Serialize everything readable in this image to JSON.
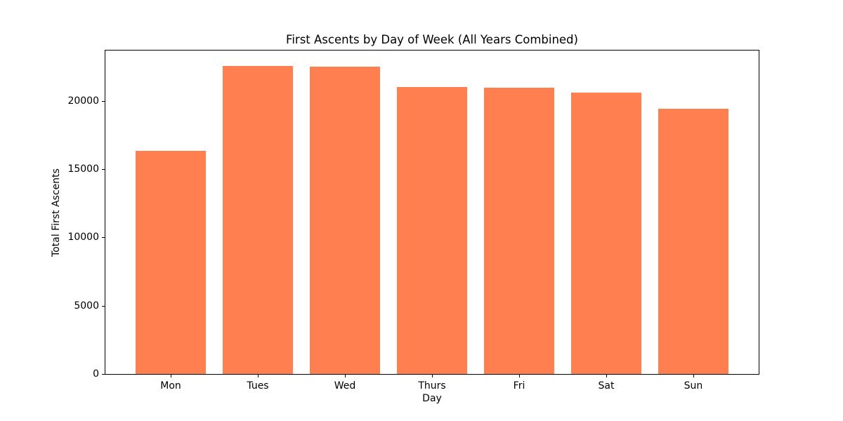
{
  "figure": {
    "background_color": "#ffffff",
    "text_color": "#000000"
  },
  "chart_data": {
    "type": "bar",
    "title": "First Ascents by Day of Week (All Years Combined)",
    "xlabel": "Day",
    "ylabel": "Total First Ascents",
    "categories": [
      "Mon",
      "Tues",
      "Wed",
      "Thurs",
      "Fri",
      "Sat",
      "Sun"
    ],
    "values": [
      16350,
      22570,
      22500,
      21050,
      21000,
      20640,
      19440
    ],
    "bar_color": "#ff7f50",
    "bar_width": 0.8,
    "xlim": [
      -0.75,
      6.75
    ],
    "ylim": [
      0,
      23700
    ],
    "yticks": [
      0,
      5000,
      10000,
      15000,
      20000
    ],
    "grid": false,
    "legend": "none"
  }
}
